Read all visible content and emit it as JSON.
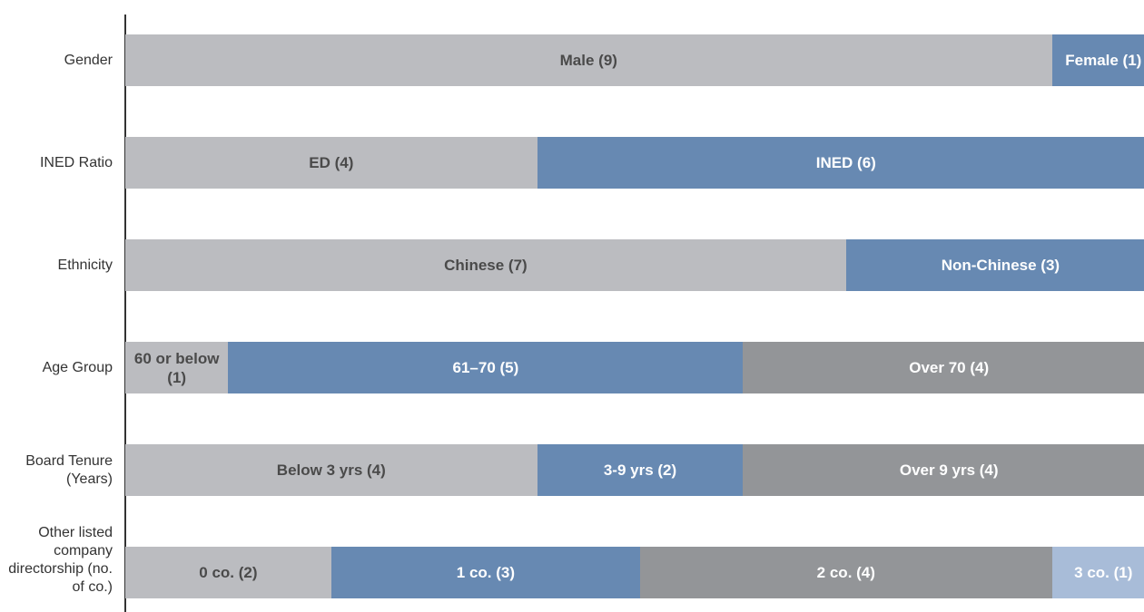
{
  "chart_data": {
    "type": "bar",
    "orientation": "horizontal",
    "stacked": true,
    "total_directors": 10,
    "rows": [
      {
        "category": "Gender",
        "segments": [
          {
            "label": "Male (9)",
            "value": 9,
            "color": "#bbbcc0",
            "text_color": "#4a4a4a"
          },
          {
            "label": "Female (1)",
            "value": 1,
            "color": "#6789b2",
            "text_color": "#ffffff"
          }
        ]
      },
      {
        "category": "INED Ratio",
        "segments": [
          {
            "label": "ED (4)",
            "value": 4,
            "color": "#bbbcc0",
            "text_color": "#4a4a4a"
          },
          {
            "label": "INED (6)",
            "value": 6,
            "color": "#6789b2",
            "text_color": "#ffffff"
          }
        ]
      },
      {
        "category": "Ethnicity",
        "segments": [
          {
            "label": "Chinese (7)",
            "value": 7,
            "color": "#bbbcc0",
            "text_color": "#4a4a4a"
          },
          {
            "label": "Non-Chinese (3)",
            "value": 3,
            "color": "#6789b2",
            "text_color": "#ffffff"
          }
        ]
      },
      {
        "category": "Age Group",
        "segments": [
          {
            "label": "60 or below (1)",
            "value": 1,
            "color": "#bbbcc0",
            "text_color": "#4a4a4a"
          },
          {
            "label": "61–70 (5)",
            "value": 5,
            "color": "#6789b2",
            "text_color": "#ffffff"
          },
          {
            "label": "Over 70 (4)",
            "value": 4,
            "color": "#939598",
            "text_color": "#ffffff"
          }
        ]
      },
      {
        "category": "Board Tenure (Years)",
        "segments": [
          {
            "label": "Below 3 yrs (4)",
            "value": 4,
            "color": "#bbbcc0",
            "text_color": "#4a4a4a"
          },
          {
            "label": "3-9 yrs (2)",
            "value": 2,
            "color": "#6789b2",
            "text_color": "#ffffff"
          },
          {
            "label": "Over 9 yrs (4)",
            "value": 4,
            "color": "#939598",
            "text_color": "#ffffff"
          }
        ]
      },
      {
        "category": "Other listed company directorship (no. of co.)",
        "segments": [
          {
            "label": "0 co. (2)",
            "value": 2,
            "color": "#bbbcc0",
            "text_color": "#4a4a4a"
          },
          {
            "label": "1 co. (3)",
            "value": 3,
            "color": "#6789b2",
            "text_color": "#ffffff"
          },
          {
            "label": "2 co. (4)",
            "value": 4,
            "color": "#939598",
            "text_color": "#ffffff"
          },
          {
            "label": "3 co. (1)",
            "value": 1,
            "color": "#a8bcd8",
            "text_color": "#ffffff"
          }
        ]
      }
    ]
  }
}
